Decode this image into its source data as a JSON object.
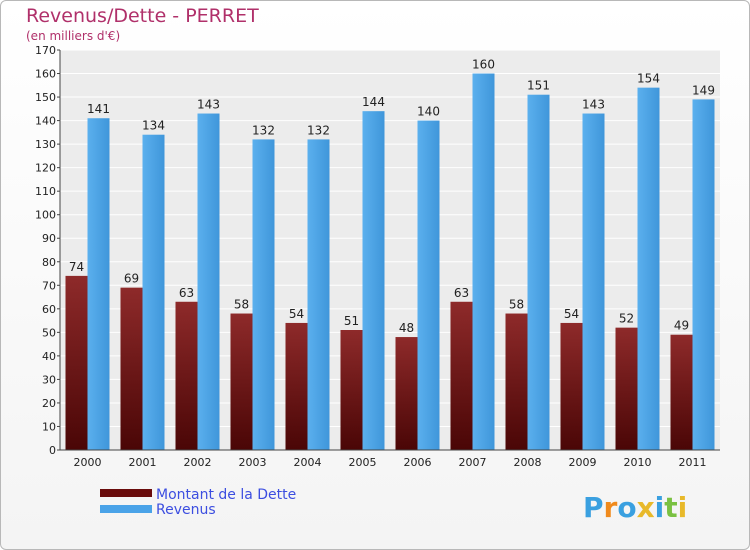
{
  "chart_data": {
    "type": "bar",
    "title": "Revenus/Dette - PERRET",
    "subtitle": "(en milliers d'€)",
    "categories": [
      "2000",
      "2001",
      "2002",
      "2003",
      "2004",
      "2005",
      "2006",
      "2007",
      "2008",
      "2009",
      "2010",
      "2011"
    ],
    "series": [
      {
        "name": "Montant de la Dette",
        "color": "#7a1a1a",
        "values": [
          74,
          69,
          63,
          58,
          54,
          51,
          48,
          63,
          58,
          54,
          52,
          49
        ]
      },
      {
        "name": "Revenus",
        "color": "#4aa3e8",
        "values": [
          141,
          134,
          143,
          132,
          132,
          144,
          140,
          160,
          151,
          143,
          154,
          149
        ]
      }
    ],
    "ylim": [
      0,
      170
    ],
    "yticks": [
      0,
      10,
      20,
      30,
      40,
      50,
      60,
      70,
      80,
      90,
      100,
      110,
      120,
      130,
      140,
      150,
      160,
      170
    ],
    "grid": true
  },
  "logo": {
    "text": "Proxiti",
    "letters": [
      "P",
      "r",
      "o",
      "x",
      "i",
      "t",
      "i"
    ],
    "colors": [
      "#3aa0e0",
      "#f08a1c",
      "#3aa0e0",
      "#e8b92a",
      "#3aa0e0",
      "#7ac142",
      "#e8b92a"
    ]
  }
}
